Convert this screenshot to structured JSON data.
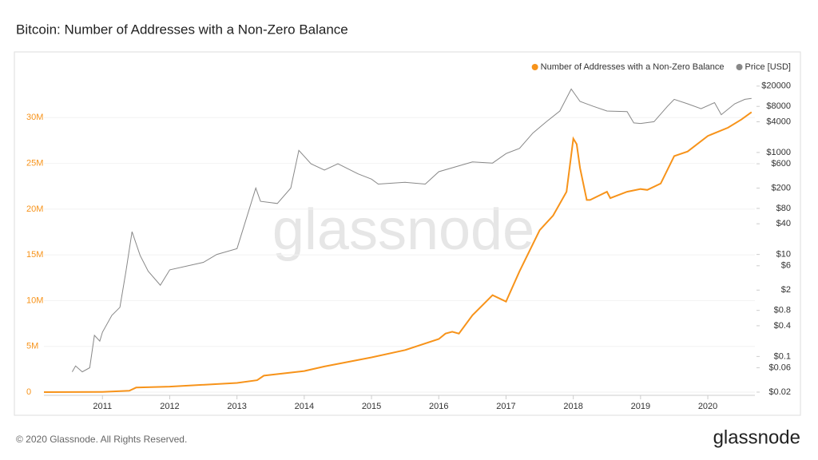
{
  "title": "Bitcoin: Number of Addresses with a Non-Zero Balance",
  "footer": "© 2020 Glassnode. All Rights Reserved.",
  "logo": "glassnode",
  "chart_data": {
    "type": "line",
    "watermark": "glassnode",
    "legend": "top-right",
    "xlim": [
      2010.13,
      2020.7
    ],
    "xticks": [
      2011,
      2012,
      2013,
      2014,
      2015,
      2016,
      2017,
      2018,
      2019,
      2020
    ],
    "ylim": [
      0,
      35000000
    ],
    "yticks": [
      0,
      {
        "value": 5000000,
        "label": "5M"
      },
      {
        "value": 10000000,
        "label": "10M"
      },
      {
        "value": 15000000,
        "label": "15M"
      },
      {
        "value": 20000000,
        "label": "20M"
      },
      {
        "value": 25000000,
        "label": "25M"
      },
      {
        "value": 30000000,
        "label": "30M"
      }
    ],
    "y2lim": [
      0.02,
      38000
    ],
    "y2log": true,
    "y2ticks": [
      {
        "value": 20000,
        "label": "$20000"
      },
      {
        "value": 8000,
        "label": "$8000"
      },
      {
        "value": 4000,
        "label": "$4000"
      },
      {
        "value": 1000,
        "label": "$1000"
      },
      {
        "value": 600,
        "label": "$600"
      },
      {
        "value": 200,
        "label": "$200"
      },
      {
        "value": 80,
        "label": "$80"
      },
      {
        "value": 40,
        "label": "$40"
      },
      {
        "value": 10,
        "label": "$10"
      },
      {
        "value": 6,
        "label": "$6"
      },
      {
        "value": 2,
        "label": "$2"
      },
      {
        "value": 0.8,
        "label": "$0.8"
      },
      {
        "value": 0.4,
        "label": "$0.4"
      },
      {
        "value": 0.1,
        "label": "$0.1"
      },
      {
        "value": 0.06,
        "label": "$0.06"
      },
      {
        "value": 0.02,
        "label": "$0.02"
      }
    ],
    "series": [
      {
        "name": "Number of Addresses with a Non-Zero Balance",
        "color": "#f7931a",
        "axis": "y",
        "x": [
          2010.13,
          2011.0,
          2011.4,
          2011.5,
          2012.0,
          2013.0,
          2013.3,
          2013.4,
          2014.0,
          2014.3,
          2015.0,
          2015.5,
          2016.0,
          2016.1,
          2016.2,
          2016.3,
          2016.5,
          2016.8,
          2017.0,
          2017.2,
          2017.5,
          2017.7,
          2017.9,
          2018.0,
          2018.05,
          2018.1,
          2018.2,
          2018.25,
          2018.5,
          2018.55,
          2018.8,
          2019.0,
          2019.1,
          2019.3,
          2019.5,
          2019.7,
          2020.0,
          2020.3,
          2020.5,
          2020.65
        ],
        "values": [
          0,
          20000,
          150000,
          500000,
          600000,
          1000000,
          1300000,
          1800000,
          2300000,
          2800000,
          3800000,
          4600000,
          5800000,
          6400000,
          6600000,
          6400000,
          8400000,
          10600000,
          9900000,
          13200000,
          17700000,
          19300000,
          21900000,
          27700000,
          27100000,
          24500000,
          21000000,
          21000000,
          21900000,
          21200000,
          21900000,
          22200000,
          22100000,
          22800000,
          25800000,
          26300000,
          28000000,
          28900000,
          29800000,
          30600000
        ]
      },
      {
        "name": "Price [USD]",
        "color": "#888888",
        "axis": "y2",
        "x": [
          2010.55,
          2010.6,
          2010.7,
          2010.81,
          2010.88,
          2010.96,
          2011.0,
          2011.14,
          2011.26,
          2011.35,
          2011.44,
          2011.56,
          2011.68,
          2011.86,
          2012.0,
          2012.5,
          2012.7,
          2013.0,
          2013.28,
          2013.35,
          2013.6,
          2013.8,
          2013.92,
          2014.1,
          2014.3,
          2014.5,
          2014.8,
          2015.0,
          2015.1,
          2015.5,
          2015.8,
          2016.0,
          2016.5,
          2016.8,
          2017.0,
          2017.2,
          2017.4,
          2017.6,
          2017.8,
          2017.97,
          2018.1,
          2018.3,
          2018.5,
          2018.8,
          2018.9,
          2019.0,
          2019.2,
          2019.4,
          2019.5,
          2019.7,
          2019.9,
          2020.1,
          2020.2,
          2020.4,
          2020.55,
          2020.65
        ],
        "values": [
          0.05,
          0.065,
          0.05,
          0.06,
          0.26,
          0.2,
          0.3,
          0.64,
          0.92,
          4.7,
          28,
          9.6,
          4.7,
          2.5,
          5,
          7,
          10,
          13,
          200,
          110,
          100,
          200,
          1100,
          600,
          450,
          600,
          380,
          300,
          240,
          260,
          240,
          420,
          650,
          620,
          950,
          1200,
          2400,
          4000,
          6500,
          17500,
          10000,
          8000,
          6500,
          6300,
          3800,
          3700,
          4000,
          8000,
          11000,
          9000,
          7200,
          9500,
          5500,
          9000,
          11000,
          11500
        ]
      }
    ]
  }
}
